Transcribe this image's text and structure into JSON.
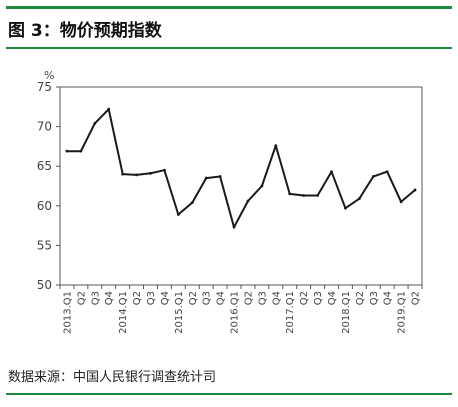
{
  "header": {
    "title": "图 3：物价预期指数"
  },
  "footer": {
    "source": "数据来源：中国人民银行调查统计司"
  },
  "colors": {
    "rule": "#1f8a3b",
    "line": "#1a1a1a",
    "axis": "#555555"
  },
  "chart_data": {
    "type": "line",
    "title": "",
    "xlabel": "",
    "ylabel": "%",
    "ylim": [
      50,
      75
    ],
    "yticks": [
      50,
      55,
      60,
      65,
      70,
      75
    ],
    "grid": false,
    "categories": [
      "2013.Q1",
      "Q2",
      "Q3",
      "Q4",
      "2014.Q1",
      "Q2",
      "Q3",
      "Q4",
      "2015.Q1",
      "Q2",
      "Q3",
      "Q4",
      "2016.Q1",
      "Q2",
      "Q3",
      "Q4",
      "2017.Q1",
      "Q2",
      "Q3",
      "Q4",
      "2018.Q1",
      "Q2",
      "Q3",
      "Q4",
      "2019.Q1",
      "Q2"
    ],
    "series": [
      {
        "values": [
          66.9,
          66.9,
          70.4,
          72.2,
          64.0,
          63.9,
          64.1,
          64.5,
          58.9,
          60.4,
          63.5,
          63.7,
          57.3,
          60.6,
          62.5,
          67.6,
          61.5,
          61.3,
          61.3,
          64.3,
          59.7,
          60.9,
          63.7,
          64.3,
          60.5,
          62.0
        ]
      }
    ]
  }
}
